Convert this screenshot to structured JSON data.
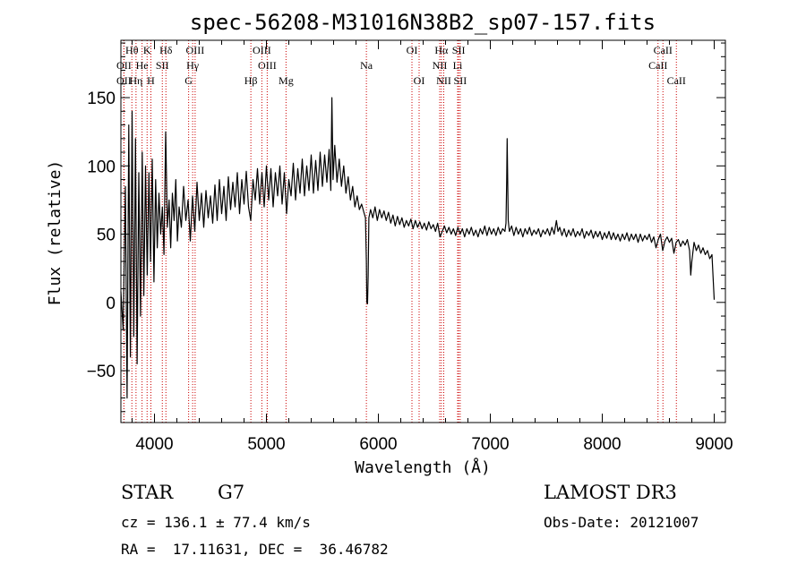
{
  "chart_data": {
    "type": "line",
    "title": "spec-56208-M31016N38B2_sp07-157.fits",
    "xlabel": "Wavelength (Å)",
    "ylabel": "Flux (relative)",
    "xlim": [
      3700,
      9100
    ],
    "ylim": [
      -88,
      192
    ],
    "x_ticks": [
      4000,
      5000,
      6000,
      7000,
      8000,
      9000
    ],
    "y_ticks": [
      -50,
      0,
      50,
      100,
      150
    ],
    "x_tick_labels": [
      "4000",
      "5000",
      "6000",
      "7000",
      "8000",
      "9000"
    ],
    "y_tick_labels": [
      "−50",
      "0",
      "50",
      "100",
      "150"
    ],
    "series": [
      {
        "name": "flux",
        "points": [
          [
            3700,
            8
          ],
          [
            3720,
            -20
          ],
          [
            3740,
            85
          ],
          [
            3755,
            -70
          ],
          [
            3770,
            130
          ],
          [
            3785,
            -40
          ],
          [
            3800,
            140
          ],
          [
            3815,
            -25
          ],
          [
            3830,
            120
          ],
          [
            3845,
            -45
          ],
          [
            3860,
            95
          ],
          [
            3875,
            -10
          ],
          [
            3890,
            110
          ],
          [
            3905,
            5
          ],
          [
            3920,
            100
          ],
          [
            3935,
            20
          ],
          [
            3950,
            95
          ],
          [
            3965,
            30
          ],
          [
            3980,
            105
          ],
          [
            3995,
            15
          ],
          [
            4010,
            90
          ],
          [
            4025,
            40
          ],
          [
            4040,
            80
          ],
          [
            4055,
            50
          ],
          [
            4070,
            70
          ],
          [
            4085,
            35
          ],
          [
            4100,
            125
          ],
          [
            4115,
            55
          ],
          [
            4130,
            75
          ],
          [
            4145,
            40
          ],
          [
            4160,
            80
          ],
          [
            4175,
            60
          ],
          [
            4190,
            90
          ],
          [
            4205,
            45
          ],
          [
            4220,
            70
          ],
          [
            4240,
            55
          ],
          [
            4260,
            85
          ],
          [
            4280,
            60
          ],
          [
            4300,
            75
          ],
          [
            4320,
            45
          ],
          [
            4340,
            78
          ],
          [
            4360,
            52
          ],
          [
            4380,
            88
          ],
          [
            4400,
            60
          ],
          [
            4420,
            80
          ],
          [
            4440,
            55
          ],
          [
            4460,
            82
          ],
          [
            4480,
            62
          ],
          [
            4500,
            78
          ],
          [
            4520,
            58
          ],
          [
            4540,
            86
          ],
          [
            4560,
            60
          ],
          [
            4580,
            90
          ],
          [
            4600,
            65
          ],
          [
            4620,
            85
          ],
          [
            4640,
            60
          ],
          [
            4660,
            92
          ],
          [
            4680,
            68
          ],
          [
            4700,
            88
          ],
          [
            4720,
            70
          ],
          [
            4740,
            95
          ],
          [
            4760,
            65
          ],
          [
            4780,
            90
          ],
          [
            4800,
            72
          ],
          [
            4820,
            96
          ],
          [
            4840,
            70
          ],
          [
            4860,
            60
          ],
          [
            4880,
            90
          ],
          [
            4900,
            75
          ],
          [
            4920,
            98
          ],
          [
            4940,
            72
          ],
          [
            4960,
            95
          ],
          [
            4980,
            70
          ],
          [
            5000,
            100
          ],
          [
            5020,
            75
          ],
          [
            5040,
            98
          ],
          [
            5060,
            70
          ],
          [
            5080,
            95
          ],
          [
            5100,
            78
          ],
          [
            5120,
            100
          ],
          [
            5140,
            72
          ],
          [
            5160,
            95
          ],
          [
            5180,
            65
          ],
          [
            5200,
            90
          ],
          [
            5220,
            78
          ],
          [
            5240,
            102
          ],
          [
            5260,
            75
          ],
          [
            5280,
            98
          ],
          [
            5300,
            80
          ],
          [
            5320,
            105
          ],
          [
            5340,
            78
          ],
          [
            5360,
            100
          ],
          [
            5380,
            82
          ],
          [
            5400,
            108
          ],
          [
            5420,
            80
          ],
          [
            5440,
            104
          ],
          [
            5460,
            82
          ],
          [
            5480,
            110
          ],
          [
            5500,
            85
          ],
          [
            5520,
            108
          ],
          [
            5540,
            88
          ],
          [
            5560,
            112
          ],
          [
            5575,
            82
          ],
          [
            5585,
            150
          ],
          [
            5595,
            90
          ],
          [
            5610,
            115
          ],
          [
            5630,
            88
          ],
          [
            5650,
            105
          ],
          [
            5670,
            85
          ],
          [
            5690,
            100
          ],
          [
            5710,
            80
          ],
          [
            5730,
            92
          ],
          [
            5750,
            75
          ],
          [
            5770,
            85
          ],
          [
            5790,
            70
          ],
          [
            5810,
            78
          ],
          [
            5830,
            68
          ],
          [
            5850,
            72
          ],
          [
            5870,
            66
          ],
          [
            5885,
            62
          ],
          [
            5893,
            30
          ],
          [
            5897,
            0
          ],
          [
            5903,
            -1
          ],
          [
            5909,
            20
          ],
          [
            5915,
            62
          ],
          [
            5930,
            68
          ],
          [
            5950,
            62
          ],
          [
            5970,
            70
          ],
          [
            5990,
            60
          ],
          [
            6010,
            68
          ],
          [
            6030,
            62
          ],
          [
            6050,
            67
          ],
          [
            6070,
            60
          ],
          [
            6090,
            66
          ],
          [
            6110,
            58
          ],
          [
            6130,
            64
          ],
          [
            6150,
            56
          ],
          [
            6170,
            63
          ],
          [
            6190,
            57
          ],
          [
            6210,
            62
          ],
          [
            6230,
            55
          ],
          [
            6250,
            60
          ],
          [
            6270,
            56
          ],
          [
            6290,
            61
          ],
          [
            6310,
            54
          ],
          [
            6330,
            60
          ],
          [
            6350,
            55
          ],
          [
            6370,
            59
          ],
          [
            6390,
            54
          ],
          [
            6410,
            58
          ],
          [
            6430,
            53
          ],
          [
            6450,
            59
          ],
          [
            6470,
            54
          ],
          [
            6490,
            57
          ],
          [
            6510,
            52
          ],
          [
            6530,
            58
          ],
          [
            6550,
            48
          ],
          [
            6570,
            52
          ],
          [
            6590,
            56
          ],
          [
            6610,
            51
          ],
          [
            6630,
            55
          ],
          [
            6650,
            50
          ],
          [
            6670,
            54
          ],
          [
            6690,
            49
          ],
          [
            6710,
            55
          ],
          [
            6730,
            50
          ],
          [
            6750,
            54
          ],
          [
            6770,
            48
          ],
          [
            6790,
            54
          ],
          [
            6810,
            50
          ],
          [
            6830,
            55
          ],
          [
            6850,
            49
          ],
          [
            6870,
            53
          ],
          [
            6890,
            48
          ],
          [
            6910,
            54
          ],
          [
            6930,
            50
          ],
          [
            6950,
            56
          ],
          [
            6970,
            49
          ],
          [
            6990,
            55
          ],
          [
            7010,
            50
          ],
          [
            7030,
            54
          ],
          [
            7050,
            49
          ],
          [
            7070,
            55
          ],
          [
            7090,
            50
          ],
          [
            7110,
            54
          ],
          [
            7130,
            52
          ],
          [
            7140,
            58
          ],
          [
            7146,
            90
          ],
          [
            7150,
            120
          ],
          [
            7154,
            95
          ],
          [
            7160,
            60
          ],
          [
            7170,
            52
          ],
          [
            7190,
            56
          ],
          [
            7210,
            49
          ],
          [
            7230,
            55
          ],
          [
            7250,
            50
          ],
          [
            7270,
            54
          ],
          [
            7290,
            48
          ],
          [
            7310,
            54
          ],
          [
            7330,
            50
          ],
          [
            7350,
            55
          ],
          [
            7370,
            49
          ],
          [
            7390,
            53
          ],
          [
            7410,
            50
          ],
          [
            7430,
            54
          ],
          [
            7450,
            48
          ],
          [
            7470,
            53
          ],
          [
            7490,
            50
          ],
          [
            7510,
            54
          ],
          [
            7530,
            49
          ],
          [
            7550,
            55
          ],
          [
            7570,
            50
          ],
          [
            7590,
            60
          ],
          [
            7605,
            52
          ],
          [
            7620,
            55
          ],
          [
            7640,
            49
          ],
          [
            7660,
            54
          ],
          [
            7680,
            48
          ],
          [
            7700,
            53
          ],
          [
            7720,
            49
          ],
          [
            7740,
            54
          ],
          [
            7760,
            48
          ],
          [
            7780,
            52
          ],
          [
            7800,
            49
          ],
          [
            7820,
            54
          ],
          [
            7840,
            47
          ],
          [
            7860,
            52
          ],
          [
            7880,
            49
          ],
          [
            7900,
            53
          ],
          [
            7920,
            47
          ],
          [
            7940,
            52
          ],
          [
            7960,
            48
          ],
          [
            7980,
            52
          ],
          [
            8000,
            46
          ],
          [
            8020,
            51
          ],
          [
            8040,
            47
          ],
          [
            8060,
            52
          ],
          [
            8080,
            46
          ],
          [
            8100,
            51
          ],
          [
            8120,
            46
          ],
          [
            8140,
            50
          ],
          [
            8160,
            45
          ],
          [
            8180,
            50
          ],
          [
            8200,
            46
          ],
          [
            8220,
            51
          ],
          [
            8240,
            45
          ],
          [
            8260,
            50
          ],
          [
            8280,
            46
          ],
          [
            8300,
            50
          ],
          [
            8320,
            44
          ],
          [
            8340,
            50
          ],
          [
            8360,
            45
          ],
          [
            8380,
            49
          ],
          [
            8400,
            46
          ],
          [
            8420,
            50
          ],
          [
            8440,
            44
          ],
          [
            8460,
            48
          ],
          [
            8480,
            40
          ],
          [
            8500,
            46
          ],
          [
            8520,
            50
          ],
          [
            8540,
            38
          ],
          [
            8560,
            45
          ],
          [
            8580,
            48
          ],
          [
            8600,
            44
          ],
          [
            8620,
            47
          ],
          [
            8640,
            36
          ],
          [
            8660,
            44
          ],
          [
            8680,
            46
          ],
          [
            8700,
            41
          ],
          [
            8720,
            45
          ],
          [
            8740,
            42
          ],
          [
            8760,
            46
          ],
          [
            8780,
            38
          ],
          [
            8790,
            20
          ],
          [
            8800,
            30
          ],
          [
            8820,
            44
          ],
          [
            8840,
            38
          ],
          [
            8860,
            42
          ],
          [
            8880,
            36
          ],
          [
            8900,
            40
          ],
          [
            8920,
            35
          ],
          [
            8940,
            38
          ],
          [
            8960,
            32
          ],
          [
            8980,
            35
          ],
          [
            9000,
            2
          ]
        ]
      }
    ],
    "spectral_lines": [
      {
        "label": "Hθ",
        "x": 3798,
        "row": 1
      },
      {
        "label": "OII",
        "x": 3727,
        "row": 2
      },
      {
        "label": "OII",
        "x": 3727,
        "row": 3
      },
      {
        "label": "Hη",
        "x": 3835,
        "row": 3
      },
      {
        "label": "He",
        "x": 3889,
        "row": 2
      },
      {
        "label": "K",
        "x": 3934,
        "row": 1
      },
      {
        "label": "H",
        "x": 3968,
        "row": 3
      },
      {
        "label": "SII",
        "x": 4070,
        "row": 2
      },
      {
        "label": "Hδ",
        "x": 4102,
        "row": 1
      },
      {
        "label": "OIII",
        "x": 4363,
        "row": 1
      },
      {
        "label": "Hγ",
        "x": 4341,
        "row": 2
      },
      {
        "label": "G",
        "x": 4305,
        "row": 3
      },
      {
        "label": "Hβ",
        "x": 4861,
        "row": 3
      },
      {
        "label": "OIII",
        "x": 4959,
        "row": 1
      },
      {
        "label": "OIII",
        "x": 5007,
        "row": 2
      },
      {
        "label": "Mg",
        "x": 5175,
        "row": 3
      },
      {
        "label": "Na",
        "x": 5893,
        "row": 2
      },
      {
        "label": "OI",
        "x": 6300,
        "row": 1
      },
      {
        "label": "OI",
        "x": 6364,
        "row": 3
      },
      {
        "label": "Hα",
        "x": 6563,
        "row": 1
      },
      {
        "label": "NII",
        "x": 6548,
        "row": 2
      },
      {
        "label": "NII",
        "x": 6584,
        "row": 3
      },
      {
        "label": "SII",
        "x": 6717,
        "row": 1
      },
      {
        "label": "Li",
        "x": 6708,
        "row": 2
      },
      {
        "label": "SII",
        "x": 6731,
        "row": 3
      },
      {
        "label": "CaII",
        "x": 8542,
        "row": 1
      },
      {
        "label": "CaII",
        "x": 8498,
        "row": 2
      },
      {
        "label": "CaII",
        "x": 8662,
        "row": 3
      }
    ],
    "line_color": "#000000",
    "marker_color": "#cc0000"
  },
  "info": {
    "object_class": "STAR",
    "subclass": "G7",
    "survey": "LAMOST DR3",
    "redshift": "cz = 136.1 ± 77.4 km/s",
    "obs_date": "Obs-Date: 20121007",
    "coords": "RA =  17.11631, DEC =  36.46782"
  }
}
